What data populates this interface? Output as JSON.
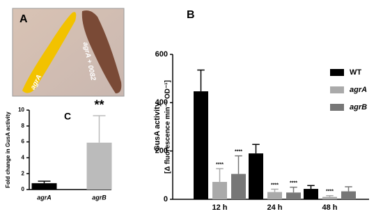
{
  "panel_a": {
    "label": "A",
    "annotations": [
      "agrA",
      "agrA + 0082"
    ]
  },
  "chart_data": [
    {
      "type": "bar",
      "title": "B",
      "ylabel": [
        "GusA activity",
        "[Δ fluorescence min⁻¹ OD⁻¹]"
      ],
      "categories": [
        "12 h",
        "24 h",
        "48 h"
      ],
      "series": [
        {
          "name": "WT",
          "color": "#000000",
          "values": [
            447,
            190,
            43
          ],
          "errors": [
            88,
            37,
            14
          ]
        },
        {
          "name": "agrA",
          "color": "#aaaaaa",
          "values": [
            72,
            30,
            10
          ],
          "errors": [
            55,
            12,
            5
          ],
          "significance": [
            "****",
            "****",
            "****"
          ]
        },
        {
          "name": "agrB",
          "color": "#777777",
          "values": [
            105,
            28,
            33
          ],
          "errors": [
            75,
            22,
            19
          ],
          "significance": [
            "****",
            "****",
            null
          ]
        }
      ],
      "ylim": [
        0,
        600
      ],
      "yticks": [
        0,
        200,
        400,
        600
      ],
      "legend": "upper-right"
    },
    {
      "type": "bar",
      "title": "C",
      "ylabel": [
        "Fold change in GusA activity"
      ],
      "categories": [
        "agrA",
        "agrB"
      ],
      "values": [
        0.8,
        5.9
      ],
      "errors": [
        0.25,
        3.4
      ],
      "colors": [
        "#000000",
        "#bbbbbb"
      ],
      "significance": [
        null,
        "**"
      ],
      "ylim": [
        0,
        10
      ],
      "yticks": [
        0,
        2,
        4,
        6,
        8,
        10
      ]
    }
  ]
}
